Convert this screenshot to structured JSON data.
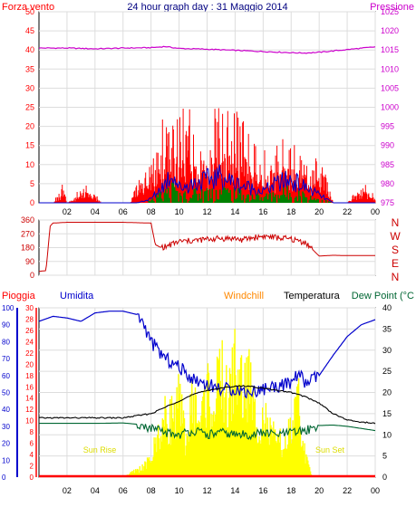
{
  "header": {
    "title": "24 hour graph day : 31 Maggio 2014",
    "left_label": "Forza vento",
    "right_label": "Pressione"
  },
  "direction_letters": [
    "N",
    "W",
    "S",
    "E",
    "N"
  ],
  "bottom_labels": {
    "rain": "Pioggia",
    "humidity": "Umidita",
    "windchill": "Windchill",
    "temperature": "Temperatura",
    "dewpoint": "Dew Point (°C",
    "sunrise": "Sun Rise",
    "sunset": "Sun Set"
  },
  "colors": {
    "wind": "#ff0000",
    "gust": "#0000cc",
    "avg": "#008000",
    "pressure": "#cc00cc",
    "direction": "#cc0000",
    "humidity": "#0000cc",
    "temperature": "#000000",
    "dewpoint": "#006633",
    "solar": "#ffff00",
    "rain": "#ff0000",
    "windchill": "#ff8800",
    "title": "#000080",
    "axis": "#000000"
  },
  "chart_data": [
    {
      "type": "line",
      "title": "24 hour graph day : 31 Maggio 2014",
      "xlabel": "",
      "x_ticks": [
        "02",
        "04",
        "06",
        "08",
        "10",
        "12",
        "14",
        "16",
        "18",
        "20",
        "22",
        "00"
      ],
      "left_axis": {
        "label": "Forza vento",
        "ticks": [
          0,
          5,
          10,
          15,
          20,
          25,
          30,
          35,
          40,
          45,
          50
        ],
        "ylim": [
          0,
          50
        ]
      },
      "right_axis": {
        "label": "Pressione",
        "ticks": [
          975,
          980,
          985,
          990,
          995,
          1000,
          1005,
          1010,
          1015,
          1020,
          1025
        ],
        "ylim": [
          975,
          1025
        ]
      },
      "series": [
        {
          "name": "",
          "axis": "right",
          "x": [
            0,
            2,
            4,
            6,
            8,
            9,
            10,
            12,
            14,
            16,
            18,
            19,
            20,
            22,
            24
          ],
          "values": [
            1015.5,
            1015.5,
            1015.3,
            1015.5,
            1015.6,
            1015.9,
            1015.4,
            1015.2,
            1014.9,
            1014.6,
            1014.3,
            1014.2,
            1014.4,
            1015.1,
            1015.8
          ]
        },
        {
          "name": "",
          "axis": "left",
          "x": [
            0,
            1,
            1.8,
            2,
            3.5,
            4,
            4.5,
            6.5,
            7,
            7.5,
            8,
            8.5,
            9,
            9.5,
            10,
            10.5,
            11,
            11.5,
            12,
            12.5,
            13,
            13.5,
            14,
            14.5,
            15,
            15.5,
            16,
            16.5,
            17,
            17.5,
            18,
            18.5,
            19,
            19.5,
            20,
            20.5,
            21,
            22,
            23,
            24
          ],
          "values": [
            0,
            0,
            5,
            0,
            4,
            2,
            0,
            0,
            5,
            7,
            10,
            14,
            20,
            21,
            18,
            20,
            17,
            18,
            19,
            20,
            23,
            19,
            18,
            17,
            16,
            14,
            10,
            12,
            13,
            18,
            13,
            12,
            10,
            7,
            14,
            8,
            0,
            0,
            5,
            2
          ]
        },
        {
          "name": "",
          "axis": "left",
          "x": [
            0,
            7,
            8,
            9,
            9.5,
            10,
            11,
            12,
            13,
            14,
            15,
            16,
            17,
            18,
            19,
            20,
            21,
            24
          ],
          "values": [
            0,
            0,
            1,
            5,
            8,
            4,
            5,
            6,
            7,
            5,
            4,
            3,
            5,
            6,
            4,
            2,
            0,
            0
          ]
        }
      ]
    },
    {
      "type": "line",
      "title": "",
      "y_ticks": [
        0,
        90,
        180,
        270,
        360
      ],
      "ylim": [
        0,
        360
      ],
      "right_letters": [
        "N",
        "W",
        "S",
        "E",
        "N"
      ],
      "series": [
        {
          "name": "",
          "x": [
            0,
            0.5,
            0.8,
            1,
            2,
            4,
            6,
            8,
            8.3,
            8.6,
            9,
            10,
            11,
            12,
            13,
            14,
            14.5,
            15,
            16,
            17,
            18,
            19,
            19.5,
            20,
            21,
            22,
            23,
            24
          ],
          "values": [
            25,
            30,
            320,
            340,
            345,
            345,
            345,
            340,
            200,
            185,
            185,
            220,
            225,
            235,
            240,
            240,
            230,
            240,
            255,
            245,
            235,
            215,
            170,
            125,
            130,
            128,
            128,
            128
          ]
        }
      ]
    },
    {
      "type": "area",
      "title": "",
      "x_ticks": [
        "02",
        "04",
        "06",
        "08",
        "10",
        "12",
        "14",
        "16",
        "18",
        "20",
        "22",
        "00"
      ],
      "axis_humidity": {
        "label": "Umidita",
        "ticks": [
          0,
          10,
          20,
          30,
          40,
          50,
          60,
          70,
          80,
          90,
          100
        ],
        "ylim": [
          0,
          100
        ]
      },
      "axis_rain": {
        "label": "Pioggia",
        "ticks": [
          0,
          2,
          4,
          6,
          8,
          10,
          12,
          14,
          16,
          18,
          20,
          22,
          24,
          26,
          28,
          30
        ],
        "ylim": [
          0,
          30
        ]
      },
      "axis_temperature": {
        "ticks": [
          0,
          5,
          10,
          15,
          20,
          25,
          30,
          35,
          40
        ],
        "ylim": [
          0,
          40
        ]
      },
      "annotations": [
        "Sun Rise",
        "Sun Set"
      ],
      "series": [
        {
          "name": "Umidita",
          "axis": "humidity",
          "x": [
            0,
            1,
            2,
            3,
            4,
            5,
            6,
            7,
            7.5,
            8,
            9,
            10,
            11,
            12,
            13,
            14,
            15,
            16,
            17,
            18,
            18.5,
            19,
            20,
            21,
            22,
            23,
            24
          ],
          "values": [
            92,
            95,
            94,
            92,
            97,
            98,
            98,
            96,
            90,
            80,
            70,
            65,
            58,
            55,
            52,
            52,
            50,
            52,
            54,
            55,
            62,
            55,
            60,
            72,
            83,
            90,
            93
          ]
        },
        {
          "name": "Temperatura",
          "axis": "temperature",
          "x": [
            0,
            2,
            4,
            6,
            7,
            8,
            9,
            10,
            11,
            12,
            13,
            14,
            15,
            16,
            17,
            18,
            19,
            20,
            21,
            22,
            23,
            24
          ],
          "values": [
            14,
            14,
            14,
            14,
            14.5,
            15,
            16.5,
            18,
            19.5,
            20.5,
            21,
            21.5,
            21.5,
            21,
            20.5,
            20,
            19,
            17.5,
            15,
            13.5,
            13,
            12.7
          ]
        },
        {
          "name": "Dew Point",
          "axis": "temperature",
          "x": [
            0,
            2,
            4,
            6,
            7,
            8,
            9,
            10,
            11,
            12,
            13,
            14,
            15,
            16,
            17,
            18,
            19,
            20,
            21,
            22,
            23,
            24
          ],
          "values": [
            12.7,
            12.7,
            12.7,
            12.8,
            12.5,
            11.5,
            10.5,
            10,
            11,
            10,
            10.5,
            10,
            10,
            10.5,
            10,
            10.5,
            11,
            12.2,
            12.3,
            12,
            11.5,
            11
          ]
        },
        {
          "name": "",
          "axis": "temperature",
          "x": [
            0,
            6,
            6.5,
            7,
            7.5,
            8,
            8.5,
            9,
            9.5,
            10,
            10.5,
            11,
            11.5,
            12,
            12.5,
            13,
            13.5,
            14,
            14.5,
            15,
            15.5,
            16,
            16.5,
            17,
            17.5,
            18,
            18.5,
            19,
            19.5,
            24
          ],
          "values": [
            0,
            0,
            1,
            2,
            3,
            5,
            12,
            16,
            17,
            21,
            10,
            22,
            15,
            25,
            19,
            30,
            20,
            32,
            25,
            27,
            15,
            18,
            12,
            10,
            9,
            13,
            21,
            6,
            0,
            0
          ]
        },
        {
          "name": "Pioggia",
          "axis": "rain",
          "x": [
            0,
            24
          ],
          "values": [
            0,
            0
          ]
        }
      ]
    }
  ]
}
